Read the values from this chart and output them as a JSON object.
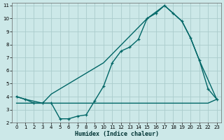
{
  "xlabel": "Humidex (Indice chaleur)",
  "background_color": "#cce8e8",
  "grid_color": "#aacccc",
  "line_color": "#006666",
  "xlim": [
    -0.5,
    23.5
  ],
  "ylim": [
    2,
    11.2
  ],
  "yticks": [
    2,
    3,
    4,
    5,
    6,
    7,
    8,
    9,
    10,
    11
  ],
  "xticks": [
    0,
    1,
    2,
    3,
    4,
    5,
    6,
    7,
    8,
    9,
    10,
    11,
    12,
    13,
    14,
    15,
    16,
    17,
    18,
    19,
    20,
    21,
    22,
    23
  ],
  "line1_x": [
    0,
    1,
    2,
    3,
    4,
    5,
    6,
    7,
    8,
    9,
    10,
    11,
    12,
    13,
    14,
    15,
    16,
    17,
    18,
    19,
    20,
    21,
    22,
    23
  ],
  "line1_y": [
    4.0,
    3.8,
    3.5,
    3.5,
    3.5,
    2.3,
    2.3,
    2.5,
    2.6,
    3.7,
    4.8,
    6.6,
    7.5,
    7.8,
    8.4,
    10.0,
    10.4,
    11.0,
    10.4,
    9.8,
    8.5,
    6.8,
    4.6,
    3.8
  ],
  "line2_x": [
    0,
    1,
    3,
    4,
    10,
    15,
    17,
    19,
    20,
    21,
    23
  ],
  "line2_y": [
    4.0,
    3.8,
    3.5,
    4.2,
    6.6,
    10.0,
    11.0,
    9.8,
    8.5,
    6.8,
    3.8
  ],
  "line3_x": [
    0,
    1,
    2,
    3,
    4,
    5,
    6,
    7,
    8,
    9,
    10,
    11,
    12,
    13,
    14,
    15,
    16,
    17,
    18,
    19,
    20,
    21,
    22,
    23
  ],
  "line3_y": [
    3.5,
    3.5,
    3.5,
    3.5,
    3.5,
    3.5,
    3.5,
    3.5,
    3.5,
    3.5,
    3.5,
    3.5,
    3.5,
    3.5,
    3.5,
    3.5,
    3.5,
    3.5,
    3.5,
    3.5,
    3.5,
    3.5,
    3.5,
    3.8
  ]
}
